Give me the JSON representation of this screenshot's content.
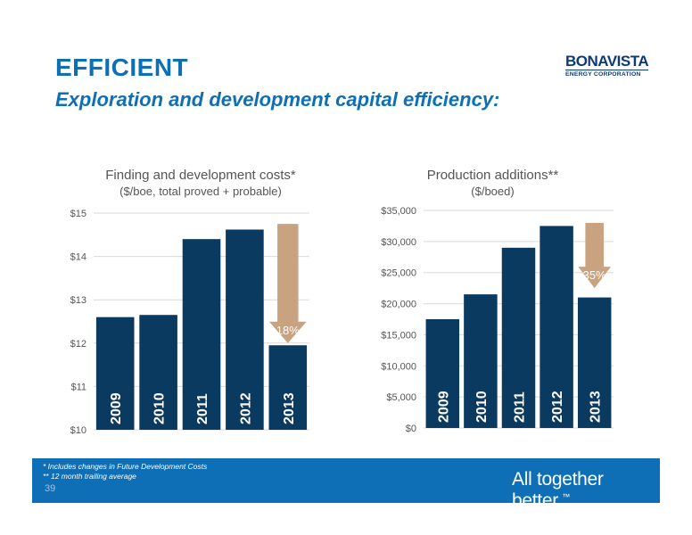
{
  "slide": {
    "title": "EFFICIENT",
    "subtitle": "Exploration and development capital efficiency:",
    "logo_line1": "BONAVISTA",
    "logo_line2": "ENERGY CORPORATION",
    "footnote1": "*  Includes changes in Future Development Costs",
    "footnote2": "** 12 month trailing average",
    "page_number": "39",
    "tagline": "All together better.",
    "tagline_mark": "™"
  },
  "colors": {
    "bar": "#0b3a60",
    "arrow": "#c9a27f",
    "brand_blue": "#0f6fb6",
    "grid": "#d9d9d9"
  },
  "chart_data": [
    {
      "type": "bar",
      "title": "Finding and development costs*",
      "subtitle": "($/boe, total proved + probable)",
      "categories": [
        "2009",
        "2010",
        "2011",
        "2012",
        "2013"
      ],
      "values": [
        12.6,
        12.65,
        14.4,
        14.62,
        11.95
      ],
      "ylim": [
        10,
        15
      ],
      "yticks": [
        10,
        11,
        12,
        13,
        14,
        15
      ],
      "ytick_labels": [
        "$10",
        "$11",
        "$12",
        "$13",
        "$14",
        "$15"
      ],
      "grid": true,
      "annotation": {
        "label": "18%",
        "from": 14.75,
        "to": 12.0,
        "direction": "down"
      }
    },
    {
      "type": "bar",
      "title": "Production additions**",
      "subtitle": "($/boed)",
      "categories": [
        "2009",
        "2010",
        "2011",
        "2012",
        "2013"
      ],
      "values": [
        17500,
        21500,
        29000,
        32500,
        21000
      ],
      "ylim": [
        0,
        35000
      ],
      "yticks": [
        0,
        5000,
        10000,
        15000,
        20000,
        25000,
        30000,
        35000
      ],
      "ytick_labels": [
        "$0",
        "$5,000",
        "$10,000",
        "$15,000",
        "$20,000",
        "$25,000",
        "$30,000",
        "$35,000"
      ],
      "grid": true,
      "annotation": {
        "label": "35%",
        "from": 33000,
        "to": 22500,
        "direction": "down"
      }
    }
  ]
}
